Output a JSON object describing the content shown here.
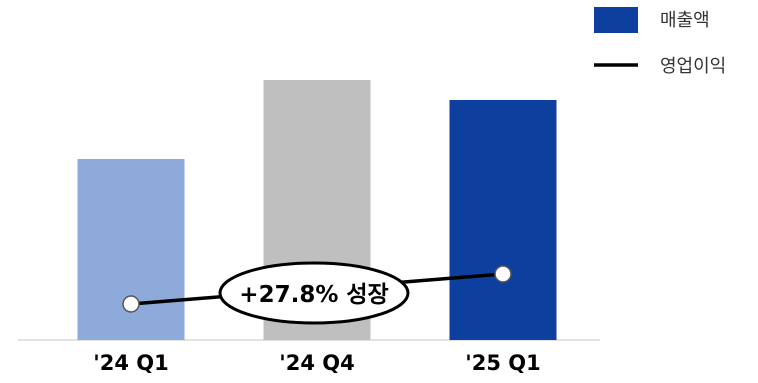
{
  "chart_data": {
    "type": "bar",
    "categories": [
      "'24 Q1",
      "'24 Q4",
      "'25 Q1"
    ],
    "series": [
      {
        "name": "매출액",
        "kind": "bar",
        "values": [
          181,
          260,
          240
        ],
        "colors": [
          "#8eaadb",
          "#bfbfbf",
          "#0d3f9e"
        ]
      },
      {
        "name": "영업이익",
        "kind": "line",
        "values": [
          36,
          46,
          66
        ],
        "color": "#000000"
      }
    ],
    "annotation": {
      "text": "+27.8% 성장"
    },
    "legend": {
      "position": "top-right"
    },
    "grid": false,
    "ylim": [
      0,
      300
    ]
  }
}
